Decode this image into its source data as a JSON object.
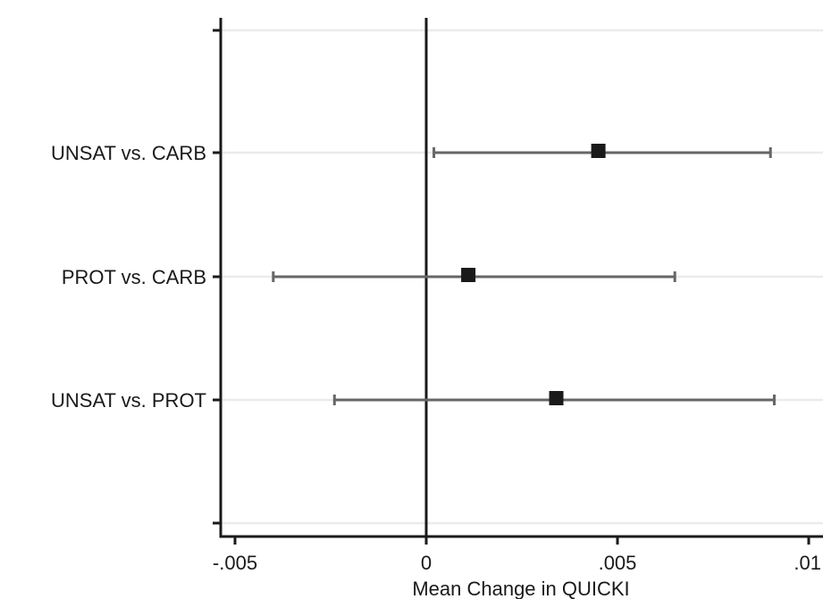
{
  "chart_data": {
    "type": "scatter",
    "subtype": "forest-plot",
    "title": "",
    "xlabel": "Mean Change in QUICKI",
    "ylabel": "",
    "xlim": [
      -0.0053,
      0.0104
    ],
    "x_ticks": [
      {
        "value": -0.005,
        "label": "-.005"
      },
      {
        "value": 0,
        "label": "0"
      },
      {
        "value": 0.005,
        "label": ".005"
      },
      {
        "value": 0.01,
        "label": ".01"
      }
    ],
    "reference_line": 0,
    "categories": [
      "UNSAT vs. CARB",
      "PROT vs. CARB",
      "UNSAT vs. PROT"
    ],
    "points": [
      {
        "label": "UNSAT vs. CARB",
        "estimate": 0.0045,
        "lower": 0.0002,
        "upper": 0.009
      },
      {
        "label": "PROT vs. CARB",
        "estimate": 0.0011,
        "lower": -0.004,
        "upper": 0.0065
      },
      {
        "label": "UNSAT vs. PROT",
        "estimate": 0.0034,
        "lower": -0.0024,
        "upper": 0.0091
      }
    ],
    "grid": true,
    "colors": {
      "marker": "#1a1a1a",
      "ci_line": "#666666",
      "gridline": "#ebebeb",
      "axis": "#1a1a1a"
    }
  }
}
